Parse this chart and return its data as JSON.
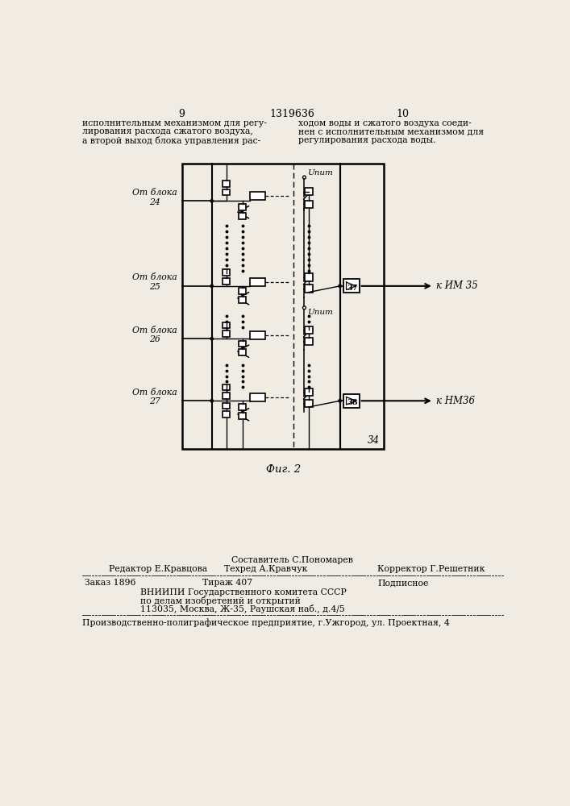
{
  "page_width": 7.07,
  "page_height": 10.0,
  "bg_color": "#f0ece4",
  "header_page_left": "9",
  "header_center": "1319636",
  "header_page_right": "10",
  "text_left_line1": "исполнительным механизмом для регу-",
  "text_left_line2": "лирования расхода сжатого воздуха,",
  "text_left_line3": "а второй выход блока управления рас-",
  "text_right_line1": "ходом воды и сжатого воздуха соеди-",
  "text_right_line2": "нен с исполнительным механизмом для",
  "text_right_line3": "регулирования расхода воды.",
  "fig_caption": "Фиг. 2",
  "label_blok24": "От блока\n24",
  "label_blok25": "От блока\n25",
  "label_blok26": "От блока\n26",
  "label_blok27": "От блока\n27",
  "label_upit1": "Uпит",
  "label_upit2": "Uпит",
  "label_37": "37",
  "label_38": "38",
  "label_34": "34",
  "label_im35": "к ИМ 35",
  "label_im36": "к НМ36",
  "footer_sostavitel": "Составитель С.Пономарев",
  "footer_redaktor": "Редактор Е.Кравцова",
  "footer_tehred": "Техред А.Кравчук",
  "footer_korrektor": "Корректор Г.Решетник",
  "footer_zakaz": "Заказ 1896",
  "footer_tirazh": "Тираж 407",
  "footer_podpisnoe": "Подписное",
  "footer_vniip1": "ВНИИПИ Государственного комитета СССР",
  "footer_vniip2": "по делам изобретений и открытий",
  "footer_vniip3": "113035, Москва, Ж-35, Раушская наб., д.4/5",
  "footer_prod": "Производственно-полиграфическое предприятие, г.Ужгород, ул. Проектная, 4"
}
